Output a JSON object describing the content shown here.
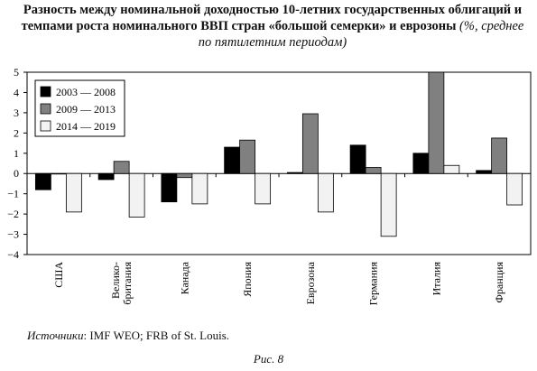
{
  "title": {
    "bold": "Разность между номинальной доходностью 10-летних государственных облигаций и темпами роста номинального ВВП стран «большой семерки» и еврозоны",
    "italic": "(%, среднее по пятилетним периодам)"
  },
  "source": {
    "label": "Источники",
    "text": ": IMF WEO; FRB of St. Louis."
  },
  "caption": "Рис. 8",
  "colors": {
    "s2003": "#000000",
    "s2009": "#808080",
    "s2014": "#f2f2f2",
    "edge": "#000000"
  },
  "chart_data": {
    "type": "bar",
    "categories": [
      "США",
      "Велико-британия",
      "Канада",
      "Япония",
      "Еврозона",
      "Германия",
      "Италия",
      "Франция"
    ],
    "category_lines": [
      [
        "США"
      ],
      [
        "Велико-",
        "британия"
      ],
      [
        "Канада"
      ],
      [
        "Япония"
      ],
      [
        "Еврозона"
      ],
      [
        "Германия"
      ],
      [
        "Италия"
      ],
      [
        "Франция"
      ]
    ],
    "series": [
      {
        "name": "2003 — 2008",
        "values": [
          -0.8,
          -0.3,
          -1.4,
          1.3,
          0.05,
          1.4,
          1.0,
          0.15
        ]
      },
      {
        "name": "2009 — 2013",
        "values": [
          0.0,
          0.6,
          -0.2,
          1.65,
          2.95,
          0.3,
          5.0,
          1.75
        ]
      },
      {
        "name": "2014 — 2019",
        "values": [
          -1.9,
          -2.15,
          -1.5,
          -1.5,
          -1.9,
          -3.1,
          0.4,
          -1.55
        ]
      }
    ],
    "ylim": [
      -4,
      5
    ],
    "yticks": [
      -4,
      -3,
      -2,
      -1,
      0,
      1,
      2,
      3,
      4,
      5
    ],
    "xlabel": "",
    "ylabel": "",
    "grid": false,
    "legend_position": "top-left"
  }
}
